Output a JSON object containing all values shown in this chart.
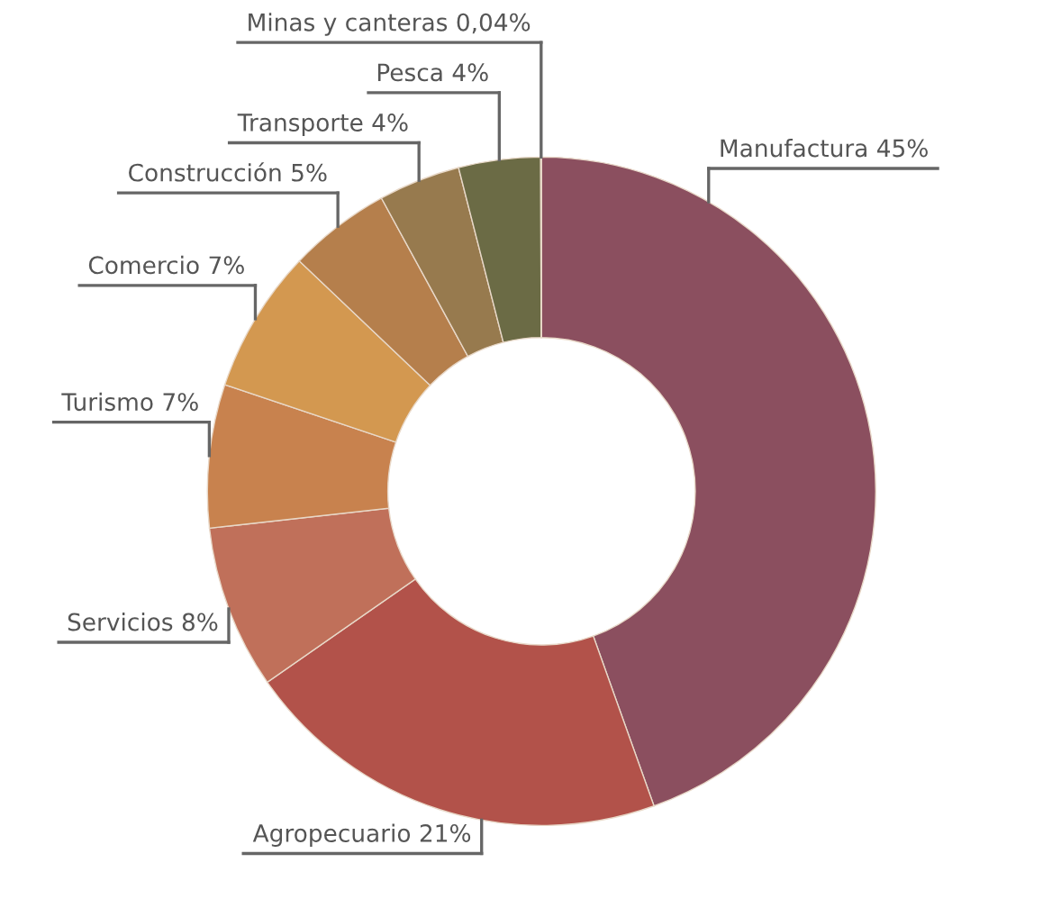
{
  "chart_data": {
    "type": "donut",
    "categories": [
      "Manufactura",
      "Agropecuario",
      "Servicios",
      "Turismo",
      "Comercio",
      "Construcción",
      "Transporte",
      "Pesca",
      "Minas y canteras"
    ],
    "values": [
      45,
      21,
      8,
      7,
      7,
      5,
      4,
      4,
      0.04
    ],
    "value_labels": [
      "45%",
      "21%",
      "8%",
      "7%",
      "7%",
      "5%",
      "4%",
      "4%",
      "0,04%"
    ],
    "colors": [
      "#8b4f5f",
      "#b2524a",
      "#c0705a",
      "#c8824e",
      "#d39850",
      "#b57f4c",
      "#977a4e",
      "#6b6b45",
      "#8a8a6a"
    ]
  }
}
